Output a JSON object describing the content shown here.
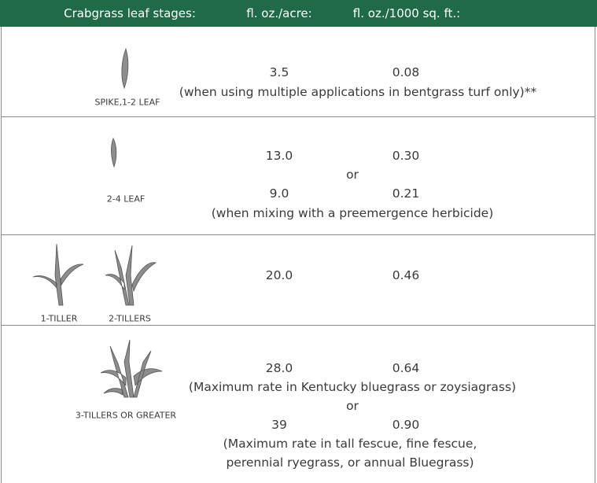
{
  "header": {
    "columns": [
      "Crabgrass leaf stages:",
      "fl. oz./acre:",
      "fl. oz./1000 sq. ft.:"
    ]
  },
  "rows": [
    {
      "stages": [
        "SPIKE,1-2 LEAF"
      ],
      "rates": [
        [
          "3.5",
          "0.08"
        ]
      ],
      "notes": [
        "(when using multiple applications in bentgrass turf only)**"
      ]
    },
    {
      "stages": [
        "2-4 LEAF"
      ],
      "rates": [
        [
          "13.0",
          "0.30"
        ],
        [
          "9.0",
          "0.21"
        ]
      ],
      "or": "or",
      "notes": [
        "(when mixing with a preemergence herbicide)"
      ]
    },
    {
      "stages": [
        "1-TILLER",
        "2-TILLERS"
      ],
      "rates": [
        [
          "20.0",
          "0.46"
        ]
      ]
    },
    {
      "stages": [
        "3-TILLERS OR GREATER"
      ],
      "rates": [
        [
          "28.0",
          "0.64"
        ],
        [
          "39",
          "0.90"
        ]
      ],
      "or": "or",
      "notes": [
        "(Maximum rate in Kentucky bluegrass or zoysiagrass)",
        "(Maximum rate in tall fescue, fine fescue,",
        "perennial ryegrass, or annual Bluegrass)"
      ]
    }
  ]
}
